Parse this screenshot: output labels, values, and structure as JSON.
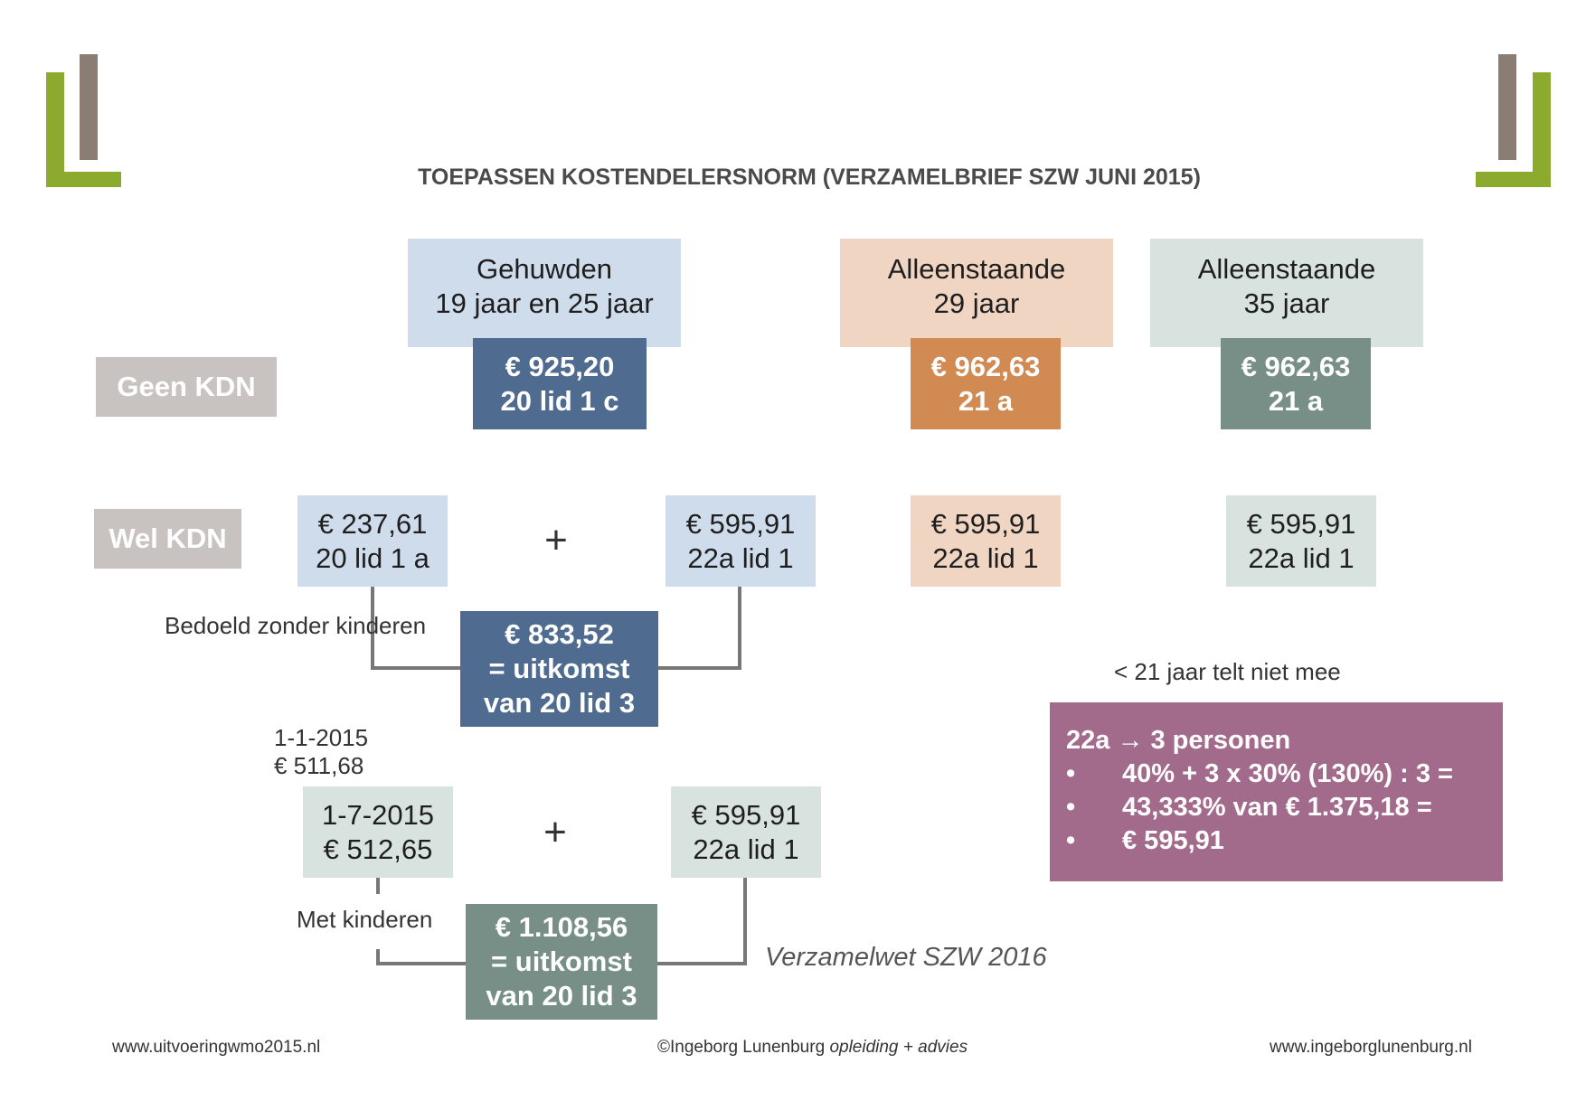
{
  "title": "TOEPASSEN KOSTENDELERSNORM (VERZAMELBRIEF SZW JUNI 2015)",
  "row_labels": {
    "geen": "Geen KDN",
    "wel": "Wel KDN"
  },
  "columns": [
    {
      "line1": "Gehuwden",
      "line2": "19 jaar en 25 jaar"
    },
    {
      "line1": "Alleenstaande",
      "line2": "29 jaar"
    },
    {
      "line1": "Alleenstaande",
      "line2": "35 jaar"
    }
  ],
  "geen_kdn": [
    {
      "amount": "€ 925,20",
      "article": "20 lid 1 c"
    },
    {
      "amount": "€ 962,63",
      "article": "21 a"
    },
    {
      "amount": "€ 962,63",
      "article": "21 a"
    }
  ],
  "wel_kdn": {
    "left": {
      "amount": "€ 237,61",
      "article": "20 lid 1 a"
    },
    "plus": "+",
    "right": {
      "amount": "€ 595,91",
      "article": "22a lid 1"
    },
    "col2": {
      "amount": "€ 595,91",
      "article": "22a lid 1"
    },
    "col3": {
      "amount": "€ 595,91",
      "article": "22a lid 1"
    },
    "note": "Bedoeld zonder kinderen",
    "result": {
      "line1": "€ 833,52",
      "line2": "= uitkomst",
      "line3": "van 20 lid 3"
    }
  },
  "kinderen": {
    "old_date": "1-1-2015",
    "old_amount": "€ 511,68",
    "left": {
      "date": "1-7-2015",
      "amount": "€ 512,65"
    },
    "plus": "+",
    "right": {
      "amount": "€ 595,91",
      "article": "22a lid 1"
    },
    "note": "Met kinderen",
    "result": {
      "line1": "€ 1.108,56",
      "line2": "= uitkomst",
      "line3": "van 20 lid 3"
    },
    "law": "Verzamelwet SZW 2016"
  },
  "under21_note": "< 21 jaar telt niet mee",
  "calc": {
    "heading": "22a → 3 personen",
    "bullets": [
      "40% + 3 x 30% (130%) : 3 =",
      "43,333% van € 1.375,18 =",
      "€ 595,91"
    ]
  },
  "footer": {
    "left": "www.uitvoeringwmo2015.nl",
    "center_normal": "©Ingeborg Lunenburg ",
    "center_italic": "opleiding + advies",
    "right": "www.ingeborglunenburg.nl"
  },
  "colors": {
    "green": "#8cab2e",
    "taupe": "#8b7d74",
    "blue_light": "#cfdcec",
    "blue_dark": "#4f6b8f",
    "peach_light": "#f0d5c3",
    "orange": "#d08a52",
    "sage_light": "#d8e3df",
    "sage_dark": "#778f87",
    "tag_gray": "#c8c3c1",
    "purple": "#a26b8c"
  }
}
